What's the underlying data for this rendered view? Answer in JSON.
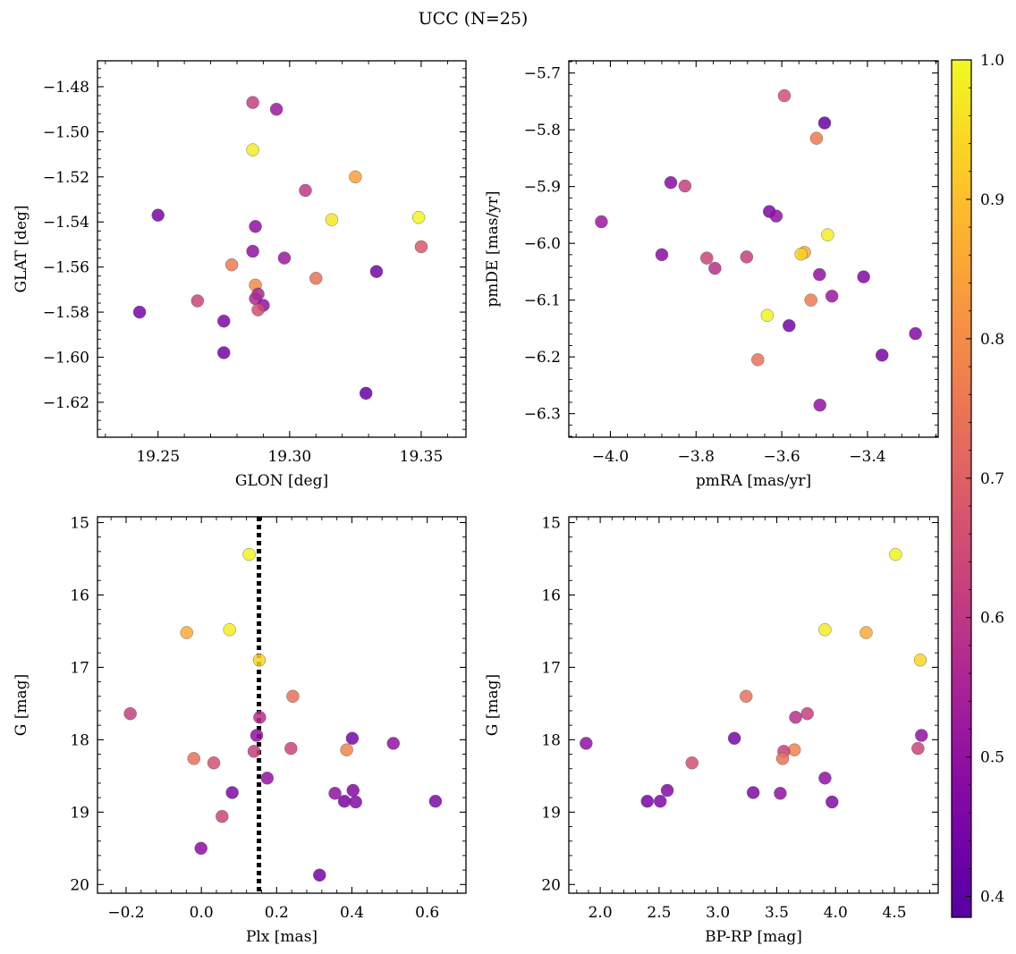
{
  "title": "UCC (N=25)",
  "colorbar": {
    "vmin": 0.385,
    "vmax": 1.0,
    "ticks": [
      0.4,
      0.5,
      0.6,
      0.7,
      0.8,
      0.9,
      1.0
    ],
    "tick_labels": [
      "0.4",
      "0.5",
      "0.6",
      "0.7",
      "0.8",
      "0.9",
      "1.0"
    ],
    "colormap": "plasma"
  },
  "chart_data": [
    {
      "type": "scatter",
      "xlabel": "GLON [deg]",
      "ylabel": "GLAT [deg]",
      "xlim": [
        19.227,
        19.367
      ],
      "ylim": [
        -1.6355,
        -1.4685
      ],
      "xticks": [
        19.25,
        19.3,
        19.35
      ],
      "xtick_labels": [
        "19.25",
        "19.30",
        "19.35"
      ],
      "yticks": [
        -1.62,
        -1.6,
        -1.58,
        -1.56,
        -1.54,
        -1.52,
        -1.5,
        -1.48
      ],
      "ytick_labels": [
        "−1.62",
        "−1.60",
        "−1.58",
        "−1.56",
        "−1.54",
        "−1.52",
        "−1.50",
        "−1.48"
      ],
      "points": [
        {
          "x": 19.286,
          "y": -1.487,
          "c": 0.62
        },
        {
          "x": 19.295,
          "y": -1.49,
          "c": 0.52
        },
        {
          "x": 19.286,
          "y": -1.508,
          "c": 0.98
        },
        {
          "x": 19.325,
          "y": -1.52,
          "c": 0.84
        },
        {
          "x": 19.306,
          "y": -1.526,
          "c": 0.6
        },
        {
          "x": 19.25,
          "y": -1.537,
          "c": 0.45
        },
        {
          "x": 19.349,
          "y": -1.538,
          "c": 0.99
        },
        {
          "x": 19.316,
          "y": -1.539,
          "c": 0.97
        },
        {
          "x": 19.287,
          "y": -1.542,
          "c": 0.5
        },
        {
          "x": 19.35,
          "y": -1.551,
          "c": 0.68
        },
        {
          "x": 19.286,
          "y": -1.553,
          "c": 0.5
        },
        {
          "x": 19.298,
          "y": -1.556,
          "c": 0.52
        },
        {
          "x": 19.278,
          "y": -1.559,
          "c": 0.76
        },
        {
          "x": 19.333,
          "y": -1.562,
          "c": 0.44
        },
        {
          "x": 19.31,
          "y": -1.565,
          "c": 0.74
        },
        {
          "x": 19.287,
          "y": -1.568,
          "c": 0.8
        },
        {
          "x": 19.288,
          "y": -1.572,
          "c": 0.55
        },
        {
          "x": 19.287,
          "y": -1.574,
          "c": 0.56
        },
        {
          "x": 19.265,
          "y": -1.575,
          "c": 0.63
        },
        {
          "x": 19.29,
          "y": -1.577,
          "c": 0.5
        },
        {
          "x": 19.288,
          "y": -1.579,
          "c": 0.66
        },
        {
          "x": 19.243,
          "y": -1.58,
          "c": 0.45
        },
        {
          "x": 19.275,
          "y": -1.584,
          "c": 0.46
        },
        {
          "x": 19.275,
          "y": -1.598,
          "c": 0.44
        },
        {
          "x": 19.329,
          "y": -1.616,
          "c": 0.42
        }
      ]
    },
    {
      "type": "scatter",
      "xlabel": "pmRA [mas/yr]",
      "ylabel": "pmDE [mas/yr]",
      "xlim": [
        -4.097,
        -3.235
      ],
      "ylim": [
        -6.3415,
        -5.6785
      ],
      "xticks": [
        -4.0,
        -3.8,
        -3.6,
        -3.4
      ],
      "xtick_labels": [
        "−4.0",
        "−3.8",
        "−3.6",
        "−3.4"
      ],
      "yticks": [
        -6.3,
        -6.2,
        -6.1,
        -6.0,
        -5.9,
        -5.8,
        -5.7
      ],
      "ytick_labels": [
        "−6.3",
        "−6.2",
        "−6.1",
        "−6.0",
        "−5.9",
        "−5.8",
        "−5.7"
      ],
      "points": [
        {
          "x": -3.594,
          "y": -5.74,
          "c": 0.66
        },
        {
          "x": -3.5,
          "y": -5.788,
          "c": 0.42
        },
        {
          "x": -3.519,
          "y": -5.815,
          "c": 0.76
        },
        {
          "x": -3.859,
          "y": -5.893,
          "c": 0.48
        },
        {
          "x": -3.826,
          "y": -5.899,
          "c": 0.62
        },
        {
          "x": -3.629,
          "y": -5.944,
          "c": 0.46
        },
        {
          "x": -3.613,
          "y": -5.952,
          "c": 0.5
        },
        {
          "x": -4.021,
          "y": -5.962,
          "c": 0.52
        },
        {
          "x": -3.493,
          "y": -5.985,
          "c": 0.98
        },
        {
          "x": -3.547,
          "y": -6.016,
          "c": 0.86
        },
        {
          "x": -3.555,
          "y": -6.019,
          "c": 0.93
        },
        {
          "x": -3.88,
          "y": -6.02,
          "c": 0.48
        },
        {
          "x": -3.775,
          "y": -6.026,
          "c": 0.63
        },
        {
          "x": -3.682,
          "y": -6.024,
          "c": 0.62
        },
        {
          "x": -3.756,
          "y": -6.044,
          "c": 0.58
        },
        {
          "x": -3.512,
          "y": -6.055,
          "c": 0.5
        },
        {
          "x": -3.409,
          "y": -6.059,
          "c": 0.47
        },
        {
          "x": -3.483,
          "y": -6.093,
          "c": 0.52
        },
        {
          "x": -3.532,
          "y": -6.1,
          "c": 0.76
        },
        {
          "x": -3.634,
          "y": -6.127,
          "c": 0.99
        },
        {
          "x": -3.583,
          "y": -6.145,
          "c": 0.44
        },
        {
          "x": -3.288,
          "y": -6.159,
          "c": 0.47
        },
        {
          "x": -3.366,
          "y": -6.197,
          "c": 0.45
        },
        {
          "x": -3.656,
          "y": -6.205,
          "c": 0.74
        },
        {
          "x": -3.511,
          "y": -6.285,
          "c": 0.5
        }
      ]
    },
    {
      "type": "scatter",
      "xlabel": "Plx [mas]",
      "ylabel": "G [mag]",
      "xlim": [
        -0.276,
        0.703
      ],
      "ylim": [
        20.12,
        14.92
      ],
      "xticks": [
        -0.2,
        0.0,
        0.2,
        0.4,
        0.6
      ],
      "xtick_labels": [
        "−0.2",
        "0.0",
        "0.2",
        "0.4",
        "0.6"
      ],
      "yticks": [
        15,
        16,
        17,
        18,
        19,
        20
      ],
      "ytick_labels": [
        "15",
        "16",
        "17",
        "18",
        "19",
        "20"
      ],
      "vline": {
        "x": 0.153,
        "style": "dotted"
      },
      "points": [
        {
          "x": 0.127,
          "y": 15.44,
          "c": 0.99
        },
        {
          "x": -0.039,
          "y": 16.52,
          "c": 0.86
        },
        {
          "x": 0.075,
          "y": 16.48,
          "c": 0.98
        },
        {
          "x": 0.154,
          "y": 16.9,
          "c": 0.94
        },
        {
          "x": 0.243,
          "y": 17.4,
          "c": 0.74
        },
        {
          "x": -0.189,
          "y": 17.64,
          "c": 0.62
        },
        {
          "x": 0.155,
          "y": 17.69,
          "c": 0.58
        },
        {
          "x": 0.147,
          "y": 17.94,
          "c": 0.5
        },
        {
          "x": 0.401,
          "y": 17.98,
          "c": 0.45
        },
        {
          "x": 0.51,
          "y": 18.05,
          "c": 0.5
        },
        {
          "x": 0.238,
          "y": 18.12,
          "c": 0.63
        },
        {
          "x": 0.386,
          "y": 18.14,
          "c": 0.78
        },
        {
          "x": 0.14,
          "y": 18.16,
          "c": 0.62
        },
        {
          "x": -0.02,
          "y": 18.26,
          "c": 0.74
        },
        {
          "x": 0.033,
          "y": 18.32,
          "c": 0.66
        },
        {
          "x": 0.175,
          "y": 18.53,
          "c": 0.5
        },
        {
          "x": 0.082,
          "y": 18.73,
          "c": 0.46
        },
        {
          "x": 0.355,
          "y": 18.74,
          "c": 0.5
        },
        {
          "x": 0.403,
          "y": 18.7,
          "c": 0.47
        },
        {
          "x": 0.38,
          "y": 18.85,
          "c": 0.45
        },
        {
          "x": 0.41,
          "y": 18.86,
          "c": 0.47
        },
        {
          "x": 0.622,
          "y": 18.85,
          "c": 0.46
        },
        {
          "x": 0.055,
          "y": 19.06,
          "c": 0.63
        },
        {
          "x": -0.001,
          "y": 19.5,
          "c": 0.49
        },
        {
          "x": 0.314,
          "y": 19.87,
          "c": 0.44
        }
      ]
    },
    {
      "type": "scatter",
      "xlabel": "BP-RP [mag]",
      "ylabel": "G [mag]",
      "xlim": [
        1.733,
        4.872
      ],
      "ylim": [
        20.12,
        14.92
      ],
      "xticks": [
        2.0,
        2.5,
        3.0,
        3.5,
        4.0,
        4.5
      ],
      "xtick_labels": [
        "2.0",
        "2.5",
        "3.0",
        "3.5",
        "4.0",
        "4.5"
      ],
      "yticks": [
        15,
        16,
        17,
        18,
        19,
        20
      ],
      "ytick_labels": [
        "15",
        "16",
        "17",
        "18",
        "19",
        "20"
      ],
      "points": [
        {
          "x": 4.51,
          "y": 15.44,
          "c": 0.99
        },
        {
          "x": 3.91,
          "y": 16.48,
          "c": 0.98
        },
        {
          "x": 4.26,
          "y": 16.52,
          "c": 0.86
        },
        {
          "x": 4.72,
          "y": 16.9,
          "c": 0.94
        },
        {
          "x": 3.24,
          "y": 17.4,
          "c": 0.74
        },
        {
          "x": 3.76,
          "y": 17.64,
          "c": 0.62
        },
        {
          "x": 3.66,
          "y": 17.69,
          "c": 0.58
        },
        {
          "x": 4.73,
          "y": 17.94,
          "c": 0.5
        },
        {
          "x": 3.14,
          "y": 17.98,
          "c": 0.45
        },
        {
          "x": 1.88,
          "y": 18.05,
          "c": 0.5
        },
        {
          "x": 4.7,
          "y": 18.12,
          "c": 0.63
        },
        {
          "x": 3.65,
          "y": 18.14,
          "c": 0.78
        },
        {
          "x": 3.56,
          "y": 18.16,
          "c": 0.62
        },
        {
          "x": 3.55,
          "y": 18.26,
          "c": 0.74
        },
        {
          "x": 2.78,
          "y": 18.32,
          "c": 0.66
        },
        {
          "x": 3.91,
          "y": 18.53,
          "c": 0.5
        },
        {
          "x": 2.57,
          "y": 18.7,
          "c": 0.47
        },
        {
          "x": 3.3,
          "y": 18.73,
          "c": 0.46
        },
        {
          "x": 3.53,
          "y": 18.74,
          "c": 0.5
        },
        {
          "x": 2.4,
          "y": 18.85,
          "c": 0.45
        },
        {
          "x": 2.51,
          "y": 18.85,
          "c": 0.46
        },
        {
          "x": 3.97,
          "y": 18.86,
          "c": 0.47
        }
      ]
    }
  ]
}
